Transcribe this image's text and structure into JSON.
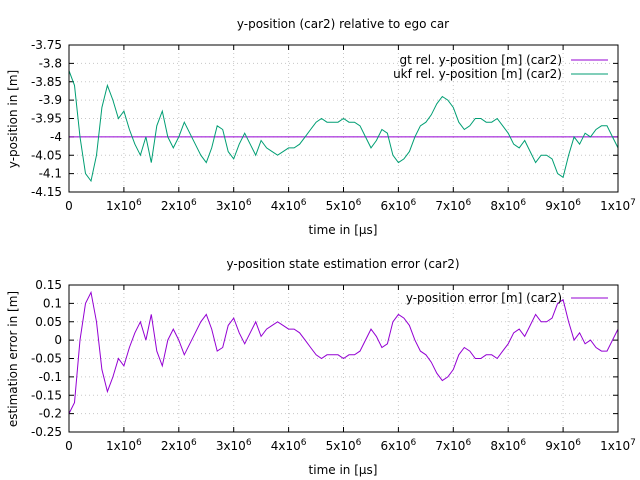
{
  "chart_data": [
    {
      "type": "line",
      "title": "y-position (car2) relative to ego car",
      "xlabel": "time in [µs]",
      "ylabel": "y-position in [m]",
      "xlim": [
        0,
        10000000
      ],
      "ylim": [
        -4.15,
        -3.75
      ],
      "grid": true,
      "legend_position": "top-right",
      "xticks": [
        0,
        1000000,
        2000000,
        3000000,
        4000000,
        5000000,
        6000000,
        7000000,
        8000000,
        9000000,
        10000000
      ],
      "xtick_labels": [
        {
          "base": "0",
          "exp": ""
        },
        {
          "base": "1x10",
          "exp": "6"
        },
        {
          "base": "2x10",
          "exp": "6"
        },
        {
          "base": "3x10",
          "exp": "6"
        },
        {
          "base": "4x10",
          "exp": "6"
        },
        {
          "base": "5x10",
          "exp": "6"
        },
        {
          "base": "6x10",
          "exp": "6"
        },
        {
          "base": "7x10",
          "exp": "6"
        },
        {
          "base": "8x10",
          "exp": "6"
        },
        {
          "base": "9x10",
          "exp": "6"
        },
        {
          "base": "1x10",
          "exp": "7"
        }
      ],
      "yticks": [
        -4.15,
        -4.1,
        -4.05,
        -4,
        -3.95,
        -3.9,
        -3.85,
        -3.8,
        -3.75
      ],
      "ytick_labels": [
        "-4.15",
        "-4.1",
        "-4.05",
        "-4",
        "-3.95",
        "-3.9",
        "-3.85",
        "-3.8",
        "-3.75"
      ],
      "series": [
        {
          "name": "gt rel. y-position [m] (car2)",
          "color": "#9400d3",
          "x": [
            0,
            10000000
          ],
          "y": [
            -4.0,
            -4.0
          ]
        },
        {
          "name": "ukf rel. y-position [m] (car2)",
          "color": "#009e73",
          "x": [
            0,
            100000,
            200000,
            300000,
            400000,
            500000,
            600000,
            700000,
            800000,
            900000,
            1000000,
            1100000,
            1200000,
            1300000,
            1400000,
            1500000,
            1600000,
            1700000,
            1800000,
            1900000,
            2000000,
            2100000,
            2200000,
            2300000,
            2400000,
            2500000,
            2600000,
            2700000,
            2800000,
            2900000,
            3000000,
            3100000,
            3200000,
            3300000,
            3400000,
            3500000,
            3600000,
            3700000,
            3800000,
            3900000,
            4000000,
            4100000,
            4200000,
            4300000,
            4400000,
            4500000,
            4600000,
            4700000,
            4800000,
            4900000,
            5000000,
            5100000,
            5200000,
            5300000,
            5400000,
            5500000,
            5600000,
            5700000,
            5800000,
            5900000,
            6000000,
            6100000,
            6200000,
            6300000,
            6400000,
            6500000,
            6600000,
            6700000,
            6800000,
            6900000,
            7000000,
            7100000,
            7200000,
            7300000,
            7400000,
            7500000,
            7600000,
            7700000,
            7800000,
            7900000,
            8000000,
            8100000,
            8200000,
            8300000,
            8400000,
            8500000,
            8600000,
            8700000,
            8800000,
            8900000,
            9000000,
            9100000,
            9200000,
            9300000,
            9400000,
            9500000,
            9600000,
            9700000,
            9800000,
            9900000,
            10000000
          ],
          "y": [
            -3.82,
            -3.86,
            -4.0,
            -4.1,
            -4.12,
            -4.05,
            -3.92,
            -3.86,
            -3.9,
            -3.95,
            -3.93,
            -3.98,
            -4.02,
            -4.05,
            -4.0,
            -4.07,
            -3.97,
            -3.93,
            -4.0,
            -4.03,
            -4.0,
            -3.96,
            -3.99,
            -4.02,
            -4.05,
            -4.07,
            -4.03,
            -3.97,
            -3.98,
            -4.04,
            -4.06,
            -4.02,
            -3.99,
            -4.02,
            -4.05,
            -4.01,
            -4.03,
            -4.04,
            -4.05,
            -4.04,
            -4.03,
            -4.03,
            -4.02,
            -4.0,
            -3.98,
            -3.96,
            -3.95,
            -3.96,
            -3.96,
            -3.96,
            -3.95,
            -3.96,
            -3.96,
            -3.97,
            -4.0,
            -4.03,
            -4.01,
            -3.98,
            -3.99,
            -4.05,
            -4.07,
            -4.06,
            -4.04,
            -4.0,
            -3.97,
            -3.96,
            -3.94,
            -3.91,
            -3.89,
            -3.9,
            -3.92,
            -3.96,
            -3.98,
            -3.97,
            -3.95,
            -3.95,
            -3.96,
            -3.96,
            -3.95,
            -3.97,
            -3.99,
            -4.02,
            -4.03,
            -4.01,
            -4.04,
            -4.07,
            -4.05,
            -4.05,
            -4.06,
            -4.1,
            -4.11,
            -4.05,
            -4.0,
            -4.02,
            -3.99,
            -4.0,
            -3.98,
            -3.97,
            -3.97,
            -4.0,
            -4.03
          ]
        }
      ]
    },
    {
      "type": "line",
      "title": "y-position state estimation error (car2)",
      "xlabel": "time in [µs]",
      "ylabel": "estimation error in [m]",
      "xlim": [
        0,
        10000000
      ],
      "ylim": [
        -0.25,
        0.15
      ],
      "grid": true,
      "legend_position": "top-right",
      "xticks": [
        0,
        1000000,
        2000000,
        3000000,
        4000000,
        5000000,
        6000000,
        7000000,
        8000000,
        9000000,
        10000000
      ],
      "xtick_labels": [
        {
          "base": "0",
          "exp": ""
        },
        {
          "base": "1x10",
          "exp": "6"
        },
        {
          "base": "2x10",
          "exp": "6"
        },
        {
          "base": "3x10",
          "exp": "6"
        },
        {
          "base": "4x10",
          "exp": "6"
        },
        {
          "base": "5x10",
          "exp": "6"
        },
        {
          "base": "6x10",
          "exp": "6"
        },
        {
          "base": "7x10",
          "exp": "6"
        },
        {
          "base": "8x10",
          "exp": "6"
        },
        {
          "base": "9x10",
          "exp": "6"
        },
        {
          "base": "1x10",
          "exp": "7"
        }
      ],
      "yticks": [
        -0.25,
        -0.2,
        -0.15,
        -0.1,
        -0.05,
        0,
        0.05,
        0.1,
        0.15
      ],
      "ytick_labels": [
        "-0.25",
        "-0.2",
        "-0.15",
        "-0.1",
        "-0.05",
        "0",
        "0.05",
        "0.1",
        "0.15"
      ],
      "series": [
        {
          "name": "y-position error [m] (car2)",
          "color": "#9400d3",
          "x": [
            0,
            100000,
            200000,
            300000,
            400000,
            500000,
            600000,
            700000,
            800000,
            900000,
            1000000,
            1100000,
            1200000,
            1300000,
            1400000,
            1500000,
            1600000,
            1700000,
            1800000,
            1900000,
            2000000,
            2100000,
            2200000,
            2300000,
            2400000,
            2500000,
            2600000,
            2700000,
            2800000,
            2900000,
            3000000,
            3100000,
            3200000,
            3300000,
            3400000,
            3500000,
            3600000,
            3700000,
            3800000,
            3900000,
            4000000,
            4100000,
            4200000,
            4300000,
            4400000,
            4500000,
            4600000,
            4700000,
            4800000,
            4900000,
            5000000,
            5100000,
            5200000,
            5300000,
            5400000,
            5500000,
            5600000,
            5700000,
            5800000,
            5900000,
            6000000,
            6100000,
            6200000,
            6300000,
            6400000,
            6500000,
            6600000,
            6700000,
            6800000,
            6900000,
            7000000,
            7100000,
            7200000,
            7300000,
            7400000,
            7500000,
            7600000,
            7700000,
            7800000,
            7900000,
            8000000,
            8100000,
            8200000,
            8300000,
            8400000,
            8500000,
            8600000,
            8700000,
            8800000,
            8900000,
            9000000,
            9100000,
            9200000,
            9300000,
            9400000,
            9500000,
            9600000,
            9700000,
            9800000,
            9900000,
            10000000
          ],
          "y": [
            -0.2,
            -0.17,
            0.0,
            0.1,
            0.13,
            0.05,
            -0.08,
            -0.14,
            -0.1,
            -0.05,
            -0.07,
            -0.02,
            0.02,
            0.05,
            0.0,
            0.07,
            -0.03,
            -0.07,
            0.0,
            0.03,
            0.0,
            -0.04,
            -0.01,
            0.02,
            0.05,
            0.07,
            0.03,
            -0.03,
            -0.02,
            0.04,
            0.06,
            0.02,
            -0.01,
            0.02,
            0.05,
            0.01,
            0.03,
            0.04,
            0.05,
            0.04,
            0.03,
            0.03,
            0.02,
            0.0,
            -0.02,
            -0.04,
            -0.05,
            -0.04,
            -0.04,
            -0.04,
            -0.05,
            -0.04,
            -0.04,
            -0.03,
            0.0,
            0.03,
            0.01,
            -0.02,
            -0.01,
            0.05,
            0.07,
            0.06,
            0.04,
            0.0,
            -0.03,
            -0.04,
            -0.06,
            -0.09,
            -0.11,
            -0.1,
            -0.08,
            -0.04,
            -0.02,
            -0.03,
            -0.05,
            -0.05,
            -0.04,
            -0.04,
            -0.05,
            -0.03,
            -0.01,
            0.02,
            0.03,
            0.01,
            0.04,
            0.07,
            0.05,
            0.05,
            0.06,
            0.1,
            0.11,
            0.05,
            0.0,
            0.02,
            -0.01,
            0.0,
            -0.02,
            -0.03,
            -0.03,
            0.0,
            0.03
          ]
        }
      ]
    }
  ]
}
